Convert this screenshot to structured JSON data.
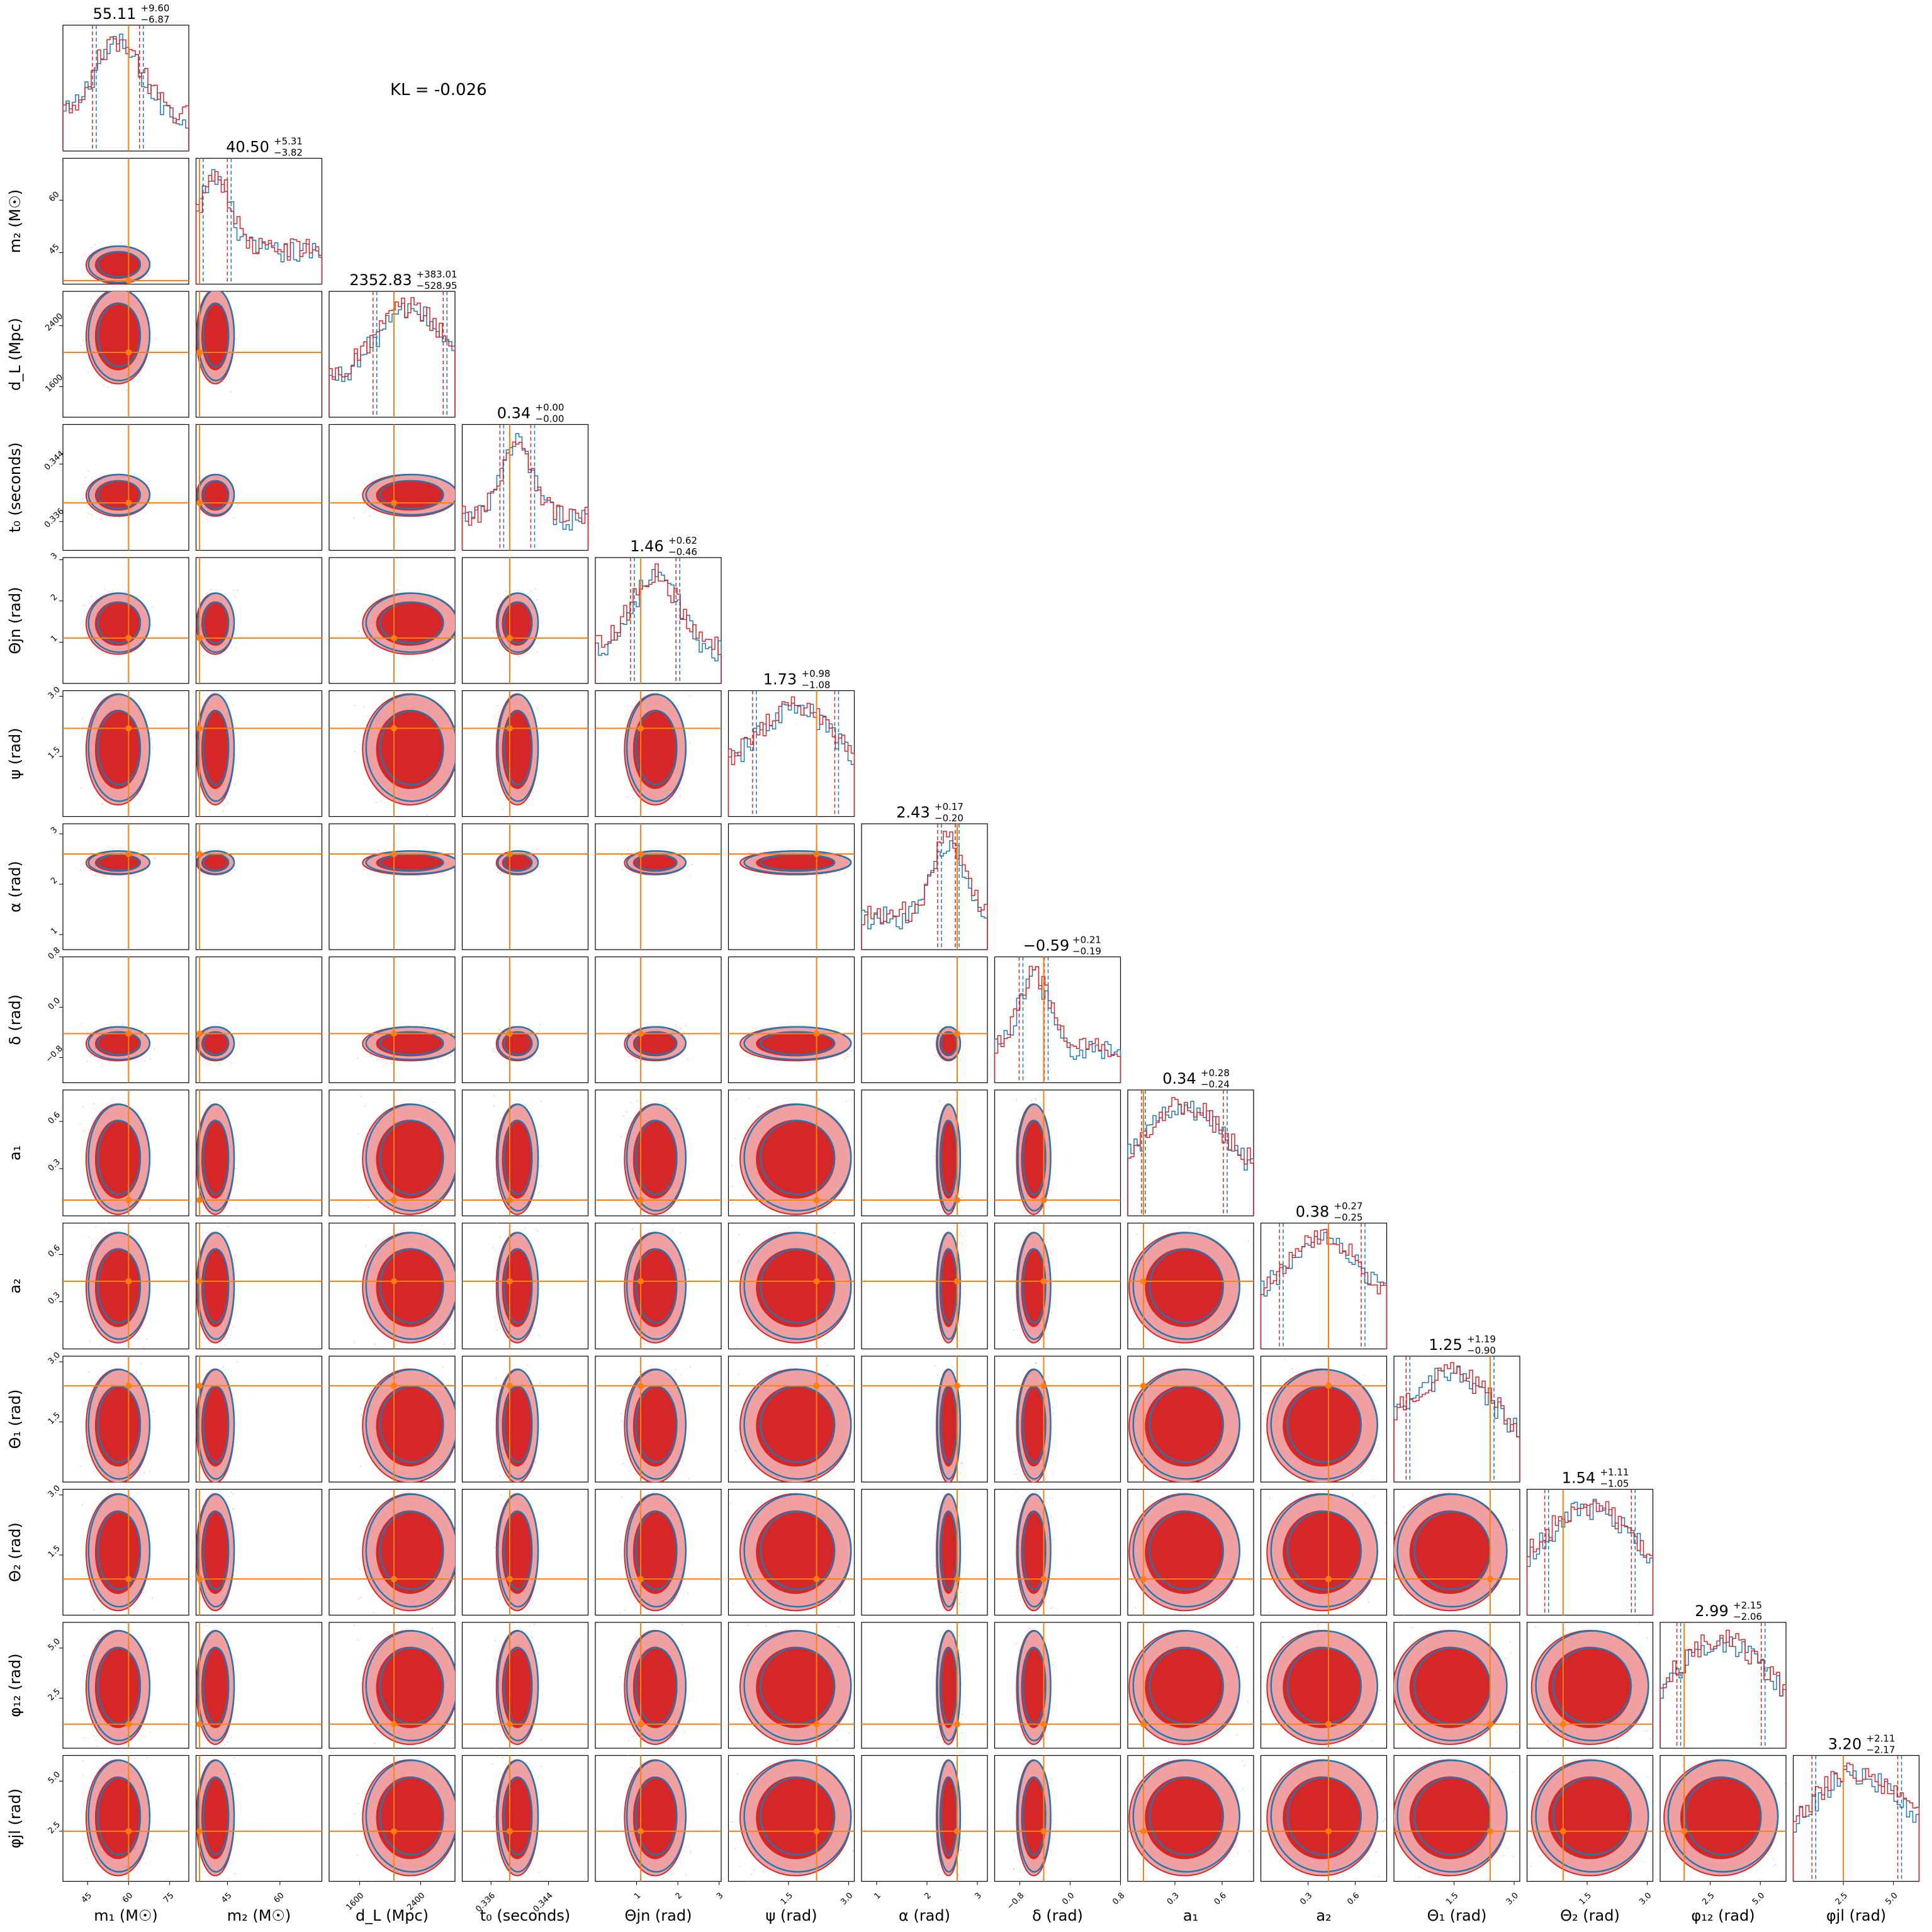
{
  "figure": {
    "kl_text": "KL = -0.026"
  },
  "colors": {
    "series_a": "#1f77b4",
    "series_b": "#d62728",
    "series_b_light": "#f0a0a0",
    "truth": "#ff7f0e"
  },
  "chart_data": {
    "type": "corner",
    "grid": false,
    "series": [
      {
        "color": "#1f77b4"
      },
      {
        "color": "#d62728"
      }
    ],
    "parameters": [
      {
        "key": "m1",
        "label": "m₁ (M☉)",
        "title": "55.11",
        "err_plus": "+9.60",
        "err_minus": "−6.87",
        "range": [
          36,
          82
        ],
        "ticks": [
          "45",
          "60",
          "75"
        ],
        "ticks_y": [],
        "truth": 60,
        "lo": 47.5,
        "hi": 64.7
      },
      {
        "key": "m2",
        "label": "m₂ (M☉)",
        "title": "40.50",
        "err_plus": "+5.31",
        "err_minus": "−3.82",
        "range": [
          36,
          72
        ],
        "ticks": [
          "45",
          "60"
        ],
        "ticks_y": [
          "45",
          "60"
        ],
        "truth": 37,
        "lo": 37.5,
        "hi": 45.5
      },
      {
        "key": "dl",
        "label": "d_L (Mpc)",
        "title": "2352.83",
        "err_plus": "+383.01",
        "err_minus": "−528.95",
        "range": [
          1200,
          2850
        ],
        "ticks": [
          "1600",
          "2400"
        ],
        "ticks_y": [
          "1600",
          "2400"
        ],
        "truth": 2050,
        "lo": 1800,
        "hi": 2720
      },
      {
        "key": "t0",
        "label": "t₀ (seconds)",
        "title": "0.34",
        "err_plus": "+0.00",
        "err_minus": "−0.00",
        "range": [
          0.332,
          0.3495
        ],
        "ticks": [
          "0.336",
          "0.344"
        ],
        "ticks_y": [
          "0.336",
          "0.344"
        ],
        "truth": 0.3386,
        "lo": 0.3375,
        "hi": 0.3418
      },
      {
        "key": "thetajn",
        "label": "Θjn (rad)",
        "title": "1.46",
        "err_plus": "+0.62",
        "err_minus": "−0.46",
        "range": [
          0,
          3.05
        ],
        "ticks": [
          "1",
          "2",
          "3"
        ],
        "ticks_y": [
          "1",
          "2",
          "3"
        ],
        "truth": 1.1,
        "lo": 0.9,
        "hi": 2.0
      },
      {
        "key": "psi",
        "label": "ψ (rad)",
        "title": "1.73",
        "err_plus": "+0.98",
        "err_minus": "−1.08",
        "range": [
          0,
          3.14
        ],
        "ticks": [
          "1.5",
          "3.0"
        ],
        "ticks_y": [
          "1.5",
          "3.0"
        ],
        "truth": 2.2,
        "lo": 0.65,
        "hi": 2.7
      },
      {
        "key": "alpha",
        "label": "α (rad)",
        "title": "2.43",
        "err_plus": "+0.17",
        "err_minus": "−0.20",
        "range": [
          0.7,
          3.2
        ],
        "ticks": [
          "1",
          "2",
          "3"
        ],
        "ticks_y": [
          "1",
          "2",
          "3"
        ],
        "truth": 2.6,
        "lo": 2.25,
        "hi": 2.6
      },
      {
        "key": "delta",
        "label": "δ (rad)",
        "title": "−0.59",
        "err_plus": "+0.21",
        "err_minus": "−0.19",
        "range": [
          -1.2,
          0.8
        ],
        "ticks": [
          "−0.8",
          "0.0",
          "0.8"
        ],
        "ticks_y": [
          "−0.8",
          "0.0",
          "0.8"
        ],
        "truth": -0.42,
        "lo": -0.78,
        "hi": -0.38
      },
      {
        "key": "a1",
        "label": "a₁",
        "title": "0.34",
        "err_plus": "+0.28",
        "err_minus": "−0.24",
        "range": [
          0,
          0.8
        ],
        "ticks": [
          "0.3",
          "0.6"
        ],
        "ticks_y": [
          "0.3",
          "0.6"
        ],
        "truth": 0.1,
        "lo": 0.1,
        "hi": 0.62
      },
      {
        "key": "a2",
        "label": "a₂",
        "title": "0.38",
        "err_plus": "+0.27",
        "err_minus": "−0.25",
        "range": [
          0,
          0.8
        ],
        "ticks": [
          "0.3",
          "0.6"
        ],
        "ticks_y": [
          "0.3",
          "0.6"
        ],
        "truth": 0.43,
        "lo": 0.13,
        "hi": 0.65
      },
      {
        "key": "theta1",
        "label": "Θ₁ (rad)",
        "title": "1.25",
        "err_plus": "+1.19",
        "err_minus": "−0.90",
        "range": [
          0,
          3.14
        ],
        "ticks": [
          "1.5",
          "3.0"
        ],
        "ticks_y": [
          "1.5",
          "3.0"
        ],
        "truth": 2.4,
        "lo": 0.35,
        "hi": 2.45
      },
      {
        "key": "theta2",
        "label": "Θ₂ (rad)",
        "title": "1.54",
        "err_plus": "+1.11",
        "err_minus": "−1.05",
        "range": [
          0,
          3.14
        ],
        "ticks": [
          "1.5",
          "3.0"
        ],
        "ticks_y": [
          "1.5",
          "3.0"
        ],
        "truth": 0.9,
        "lo": 0.49,
        "hi": 2.65
      },
      {
        "key": "phi12",
        "label": "φ₁₂ (rad)",
        "title": "2.99",
        "err_plus": "+2.15",
        "err_minus": "−2.06",
        "range": [
          0,
          6.28
        ],
        "ticks": [
          "2.5",
          "5.0"
        ],
        "ticks_y": [
          "2.5",
          "5.0"
        ],
        "truth": 1.2,
        "lo": 0.93,
        "hi": 5.14
      },
      {
        "key": "phijl",
        "label": "φjl (rad)",
        "title": "3.20",
        "err_plus": "+2.11",
        "err_minus": "−2.17",
        "range": [
          0,
          6.28
        ],
        "ticks": [
          "2.5",
          "5.0"
        ],
        "ticks_y": [
          "2.5",
          "5.0"
        ],
        "truth": 2.5,
        "lo": 1.03,
        "hi": 5.31
      }
    ]
  }
}
